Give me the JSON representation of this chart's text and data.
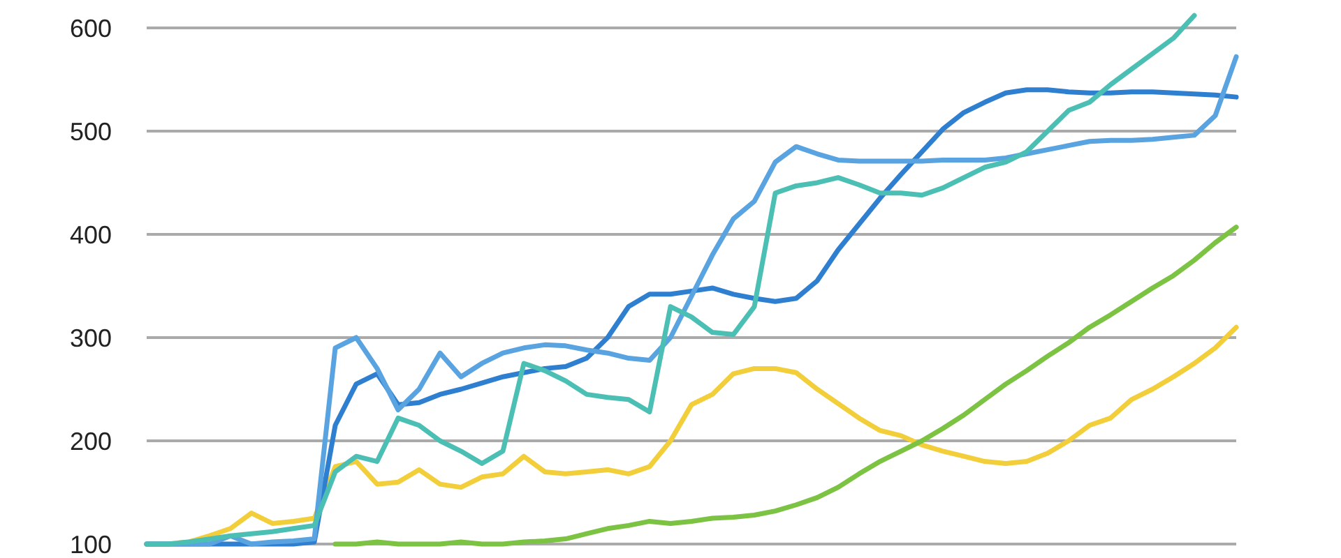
{
  "chart_data": {
    "type": "line",
    "categories": [
      null,
      null,
      null,
      null,
      null,
      null,
      null,
      null,
      null,
      null,
      null,
      null,
      null,
      null,
      null,
      null,
      null,
      null,
      null,
      null,
      null,
      null,
      null,
      null,
      null,
      null,
      null,
      null,
      null,
      null,
      null,
      null,
      null,
      null,
      null,
      null,
      null,
      null,
      null,
      null,
      null,
      null,
      null,
      null,
      null,
      null,
      null,
      null,
      null,
      null,
      null,
      null,
      null
    ],
    "ylim": [
      100,
      627
    ],
    "yticks": [
      100,
      200,
      300,
      400,
      500,
      600
    ],
    "grid": "y",
    "marker": "none",
    "line_style": "solid",
    "series": [
      {
        "color": "#f2cf3a",
        "values": [
          100,
          100,
          102,
          108,
          115,
          130,
          120,
          122,
          125,
          175,
          180,
          158,
          160,
          172,
          158,
          155,
          165,
          168,
          185,
          170,
          168,
          170,
          172,
          168,
          175,
          200,
          235,
          245,
          265,
          270,
          270,
          266,
          250,
          236,
          222,
          210,
          205,
          196,
          190,
          185,
          180,
          178,
          180,
          188,
          200,
          215,
          222,
          240,
          250,
          262,
          275,
          290,
          310
        ]
      },
      {
        "color": "#7cc243",
        "values": [
          null,
          null,
          null,
          null,
          null,
          null,
          null,
          null,
          null,
          100,
          100,
          102,
          100,
          100,
          100,
          102,
          100,
          100,
          102,
          103,
          105,
          110,
          115,
          118,
          122,
          120,
          122,
          125,
          126,
          128,
          132,
          138,
          145,
          155,
          168,
          180,
          190,
          200,
          212,
          225,
          240,
          255,
          268,
          282,
          295,
          310,
          322,
          335,
          348,
          360,
          375,
          392,
          407
        ]
      },
      {
        "color": "#2f7fd0",
        "values": [
          100,
          100,
          100,
          100,
          100,
          100,
          100,
          100,
          102,
          215,
          255,
          265,
          235,
          237,
          245,
          250,
          256,
          262,
          266,
          270,
          272,
          280,
          300,
          330,
          342,
          342,
          345,
          348,
          342,
          338,
          335,
          338,
          355,
          385,
          410,
          435,
          458,
          480,
          502,
          518,
          528,
          537,
          540,
          540,
          538,
          537,
          537,
          538,
          538,
          537,
          536,
          535,
          533
        ]
      },
      {
        "color": "#58a3e0",
        "values": [
          100,
          100,
          100,
          100,
          108,
          100,
          102,
          103,
          105,
          290,
          300,
          270,
          230,
          250,
          285,
          262,
          275,
          285,
          290,
          293,
          292,
          288,
          285,
          280,
          278,
          300,
          340,
          380,
          415,
          432,
          470,
          485,
          478,
          472,
          471,
          471,
          471,
          471,
          472,
          472,
          472,
          474,
          478,
          482,
          486,
          490,
          491,
          491,
          492,
          494,
          496,
          515,
          572
        ]
      },
      {
        "color": "#4cbfb5",
        "values": [
          100,
          100,
          102,
          105,
          108,
          110,
          112,
          115,
          118,
          170,
          185,
          180,
          222,
          215,
          200,
          190,
          178,
          190,
          275,
          268,
          258,
          245,
          242,
          240,
          228,
          330,
          320,
          305,
          303,
          330,
          440,
          447,
          450,
          455,
          448,
          440,
          440,
          438,
          445,
          455,
          465,
          470,
          480,
          500,
          520,
          528,
          545,
          560,
          575,
          590,
          612,
          null,
          null
        ]
      }
    ]
  }
}
